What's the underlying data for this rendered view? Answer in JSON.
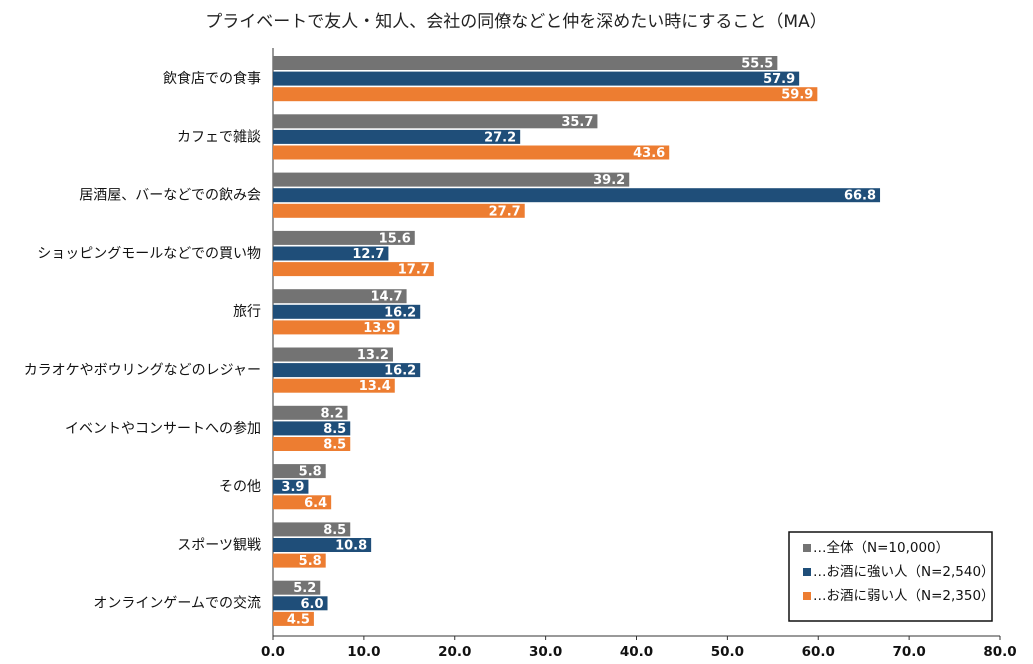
{
  "chart_data": {
    "type": "bar",
    "orientation": "horizontal",
    "title": "プライベートで友人・知人、会社の同僚などと仲を深めたい時にすること（MA）",
    "categories": [
      "飲食店での食事",
      "カフェで雑談",
      "居酒屋、バーなどでの飲み会",
      "ショッピングモールなどでの買い物",
      "旅行",
      "カラオケやボウリングなどのレジャー",
      "イベントやコンサートへの参加",
      "その他",
      "スポーツ観戦",
      "オンラインゲームでの交流"
    ],
    "series": [
      {
        "name": "…全体（N=10,000）",
        "color": "#737373",
        "values": [
          55.5,
          35.7,
          39.2,
          15.6,
          14.7,
          13.2,
          8.2,
          5.8,
          8.5,
          5.2
        ]
      },
      {
        "name": "…お酒に強い人（N=2,540）",
        "color": "#1f4e79",
        "values": [
          57.9,
          27.2,
          66.8,
          12.7,
          16.2,
          16.2,
          8.5,
          3.9,
          10.8,
          6.0
        ]
      },
      {
        "name": "…お酒に弱い人（N=2,350）",
        "color": "#ed7d31",
        "values": [
          59.9,
          43.6,
          27.7,
          17.7,
          13.9,
          13.4,
          8.5,
          6.4,
          5.8,
          4.5
        ]
      }
    ],
    "xlim": [
      0,
      80
    ],
    "xticks": [
      "0.0",
      "10.0",
      "20.0",
      "30.0",
      "40.0",
      "50.0",
      "60.0",
      "70.0",
      "80.0"
    ],
    "grid": false,
    "legend_position": "bottom-right"
  }
}
